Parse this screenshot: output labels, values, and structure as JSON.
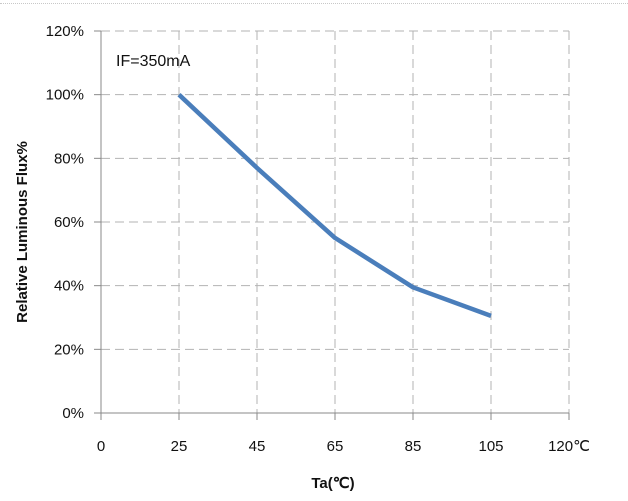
{
  "chart_data": {
    "type": "line",
    "title": "",
    "annotation": "IF=350mA",
    "xlabel": "Ta(℃)",
    "ylabel": "Relative Luminous Flux%",
    "x_ticks": [
      "0",
      "25",
      "45",
      "65",
      "85",
      "105",
      "120℃"
    ],
    "y_ticks": [
      "0%",
      "20%",
      "40%",
      "60%",
      "80%",
      "100%",
      "120%"
    ],
    "ylim": [
      0,
      120
    ],
    "grid": true,
    "legend": "none",
    "series": [
      {
        "color": "#4a7ebb",
        "x": [
          25,
          45,
          65,
          85,
          105
        ],
        "y": [
          100,
          77,
          55,
          39.5,
          30.5
        ]
      }
    ]
  }
}
